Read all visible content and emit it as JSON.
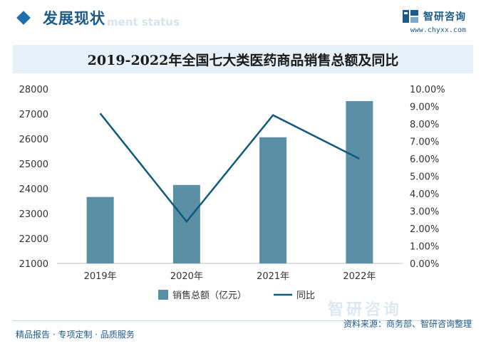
{
  "header": {
    "title": "发展现状",
    "subtitle": "ment status"
  },
  "brand": {
    "name": "智研咨询",
    "url": "www.chyxx.com"
  },
  "footer": {
    "left": "精品报告 · 专项定制 · 品质服务",
    "source": "资料来源：商务部、智研咨询整理",
    "watermark": "智研咨询"
  },
  "colors": {
    "bar": "#5b8fa6",
    "line": "#105b7a",
    "accent": "#1c5a8a"
  },
  "chart_data": {
    "type": "bar",
    "title": "2019-2022年全国七大类医药商品销售总额及同比",
    "categories": [
      "2019年",
      "2020年",
      "2021年",
      "2022年"
    ],
    "series": [
      {
        "name": "销售总额（亿元）",
        "type": "bar",
        "axis": "left",
        "values": [
          23667,
          24149,
          26064,
          27516
        ]
      },
      {
        "name": "同比",
        "type": "line",
        "axis": "right",
        "values": [
          8.6,
          2.4,
          8.5,
          6.0
        ]
      }
    ],
    "y_left": {
      "min": 21000,
      "max": 28000,
      "ticks": [
        "21000",
        "22000",
        "23000",
        "24000",
        "25000",
        "26000",
        "27000",
        "28000"
      ]
    },
    "y_right": {
      "min": 0,
      "max": 10,
      "ticks": [
        "0.00%",
        "1.00%",
        "2.00%",
        "3.00%",
        "4.00%",
        "5.00%",
        "6.00%",
        "7.00%",
        "8.00%",
        "9.00%",
        "10.00%"
      ]
    },
    "grid": false,
    "legend_position": "bottom"
  }
}
